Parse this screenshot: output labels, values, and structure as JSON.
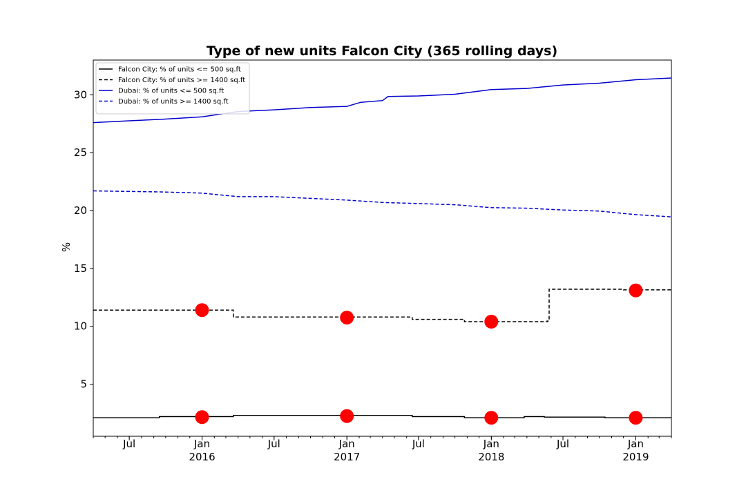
{
  "chart_data": {
    "type": "line",
    "title": "Type of new units Falcon City (365 rolling days)",
    "xlabel": "",
    "ylabel": "%",
    "xlim": [
      "2015-04-01",
      "2019-04-01"
    ],
    "ylim": [
      0.5,
      33
    ],
    "grid": false,
    "legend_position": "top-left",
    "y_ticks": [
      5,
      10,
      15,
      20,
      25,
      30
    ],
    "x_ticks": [
      {
        "date": "2015-07-01",
        "line1": "Jul",
        "line2": ""
      },
      {
        "date": "2016-01-01",
        "line1": "Jan",
        "line2": "2016"
      },
      {
        "date": "2016-07-01",
        "line1": "Jul",
        "line2": ""
      },
      {
        "date": "2017-01-01",
        "line1": "Jan",
        "line2": "2017"
      },
      {
        "date": "2017-07-01",
        "line1": "Jul",
        "line2": ""
      },
      {
        "date": "2018-01-01",
        "line1": "Jan",
        "line2": "2018"
      },
      {
        "date": "2018-07-01",
        "line1": "Jul",
        "line2": ""
      },
      {
        "date": "2019-01-01",
        "line1": "Jan",
        "line2": "2019"
      }
    ],
    "series": [
      {
        "name": "Falcon City: % of units <= 500 sq.ft",
        "color": "#000000",
        "dash": "solid",
        "step": true,
        "points": [
          [
            "2015-04-01",
            2.1
          ],
          [
            "2015-09-15",
            2.2
          ],
          [
            "2016-03-20",
            2.3
          ],
          [
            "2017-06-15",
            2.2
          ],
          [
            "2017-10-25",
            2.1
          ],
          [
            "2018-03-25",
            2.2
          ],
          [
            "2018-05-15",
            2.15
          ],
          [
            "2018-10-15",
            2.1
          ],
          [
            "2019-04-01",
            2.1
          ]
        ]
      },
      {
        "name": "Falcon City: % of units >= 1400 sq.ft",
        "color": "#000000",
        "dash": "dashed",
        "step": true,
        "points": [
          [
            "2015-04-01",
            11.4
          ],
          [
            "2016-03-20",
            10.8
          ],
          [
            "2017-06-15",
            10.6
          ],
          [
            "2017-10-25",
            10.4
          ],
          [
            "2018-05-22",
            10.45
          ],
          [
            "2018-05-27",
            13.2
          ],
          [
            "2018-12-01",
            13.15
          ],
          [
            "2019-04-01",
            13.15
          ]
        ]
      },
      {
        "name": "Dubai: % of units <= 500 sq.ft",
        "color": "#0000cc",
        "dash": "solid",
        "step": false,
        "points": [
          [
            "2015-04-01",
            27.6
          ],
          [
            "2015-07-01",
            27.75
          ],
          [
            "2015-10-01",
            27.9
          ],
          [
            "2016-01-01",
            28.1
          ],
          [
            "2016-04-01",
            28.55
          ],
          [
            "2016-07-01",
            28.7
          ],
          [
            "2016-10-01",
            28.9
          ],
          [
            "2017-01-01",
            29.0
          ],
          [
            "2017-02-05",
            29.35
          ],
          [
            "2017-04-01",
            29.5
          ],
          [
            "2017-04-15",
            29.85
          ],
          [
            "2017-07-01",
            29.9
          ],
          [
            "2017-10-01",
            30.05
          ],
          [
            "2018-01-01",
            30.45
          ],
          [
            "2018-04-01",
            30.55
          ],
          [
            "2018-07-01",
            30.85
          ],
          [
            "2018-10-01",
            31.0
          ],
          [
            "2019-01-01",
            31.3
          ],
          [
            "2019-04-01",
            31.45
          ]
        ]
      },
      {
        "name": "Dubai: % of units >= 1400 sq.ft",
        "color": "#0000cc",
        "dash": "dashed",
        "step": false,
        "points": [
          [
            "2015-04-01",
            21.7
          ],
          [
            "2015-07-01",
            21.65
          ],
          [
            "2015-10-01",
            21.6
          ],
          [
            "2016-01-01",
            21.5
          ],
          [
            "2016-04-01",
            21.2
          ],
          [
            "2016-07-01",
            21.2
          ],
          [
            "2016-10-01",
            21.05
          ],
          [
            "2017-01-01",
            20.9
          ],
          [
            "2017-04-01",
            20.7
          ],
          [
            "2017-07-01",
            20.6
          ],
          [
            "2017-10-01",
            20.5
          ],
          [
            "2018-01-01",
            20.25
          ],
          [
            "2018-04-01",
            20.2
          ],
          [
            "2018-07-01",
            20.05
          ],
          [
            "2018-10-01",
            19.95
          ],
          [
            "2019-01-01",
            19.65
          ],
          [
            "2019-04-01",
            19.45
          ]
        ]
      }
    ],
    "markers": {
      "color": "#ff0000",
      "points": [
        [
          "2016-01-01",
          2.15
        ],
        [
          "2017-01-01",
          2.25
        ],
        [
          "2018-01-01",
          2.1
        ],
        [
          "2019-01-01",
          2.1
        ],
        [
          "2016-01-01",
          11.4
        ],
        [
          "2017-01-01",
          10.75
        ],
        [
          "2018-01-01",
          10.4
        ],
        [
          "2019-01-01",
          13.1
        ]
      ]
    }
  }
}
